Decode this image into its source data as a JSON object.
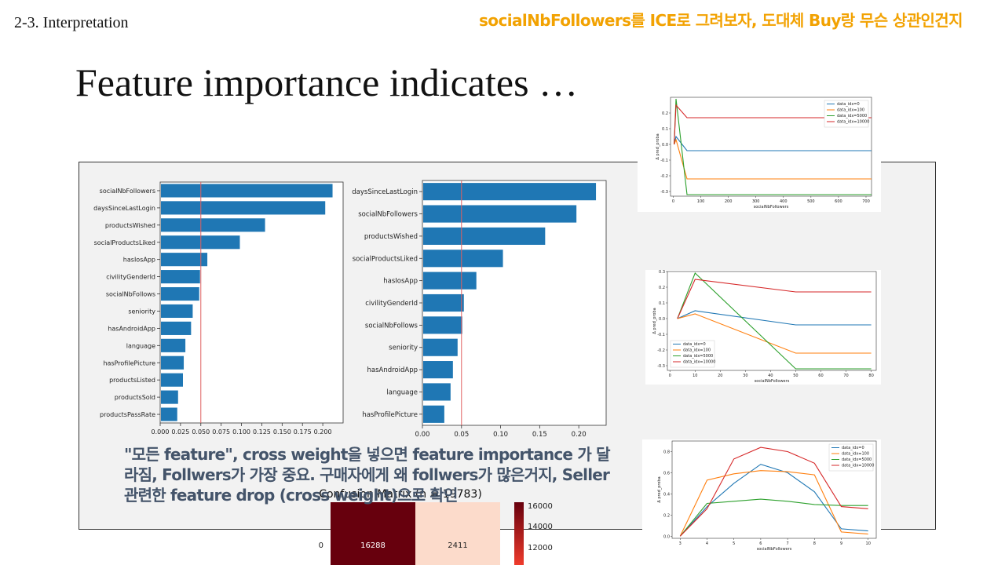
{
  "slide": {
    "section": "2-3. Interpretation",
    "title": "Feature importance indicates …",
    "note": "socialNbFollowers를 ICE로 그려보자, 도대체 Buy랑 무슨 상관인건지",
    "comment": "\"모든 feature\", cross weight을 넣으면 feature importance 가 달라짐, Follwers가 가장 중요. 구매자에게 왜 follwers가 많은거지,  Seller관련한 feature drop (cross weight)으로 확인"
  },
  "colors": {
    "bar": "#1f77b4",
    "threshold": "#e06060",
    "note": "#f2a202",
    "comment": "#44546a"
  },
  "chart_data": [
    {
      "type": "bar",
      "orientation": "horizontal",
      "categories": [
        "socialNbFollowers",
        "daysSinceLastLogin",
        "productsWished",
        "socialProductsLiked",
        "hasIosApp",
        "civilityGenderId",
        "socialNbFollows",
        "seniority",
        "hasAndroidApp",
        "language",
        "hasProfilePicture",
        "productsListed",
        "productsSold",
        "productsPassRate"
      ],
      "values": [
        0.212,
        0.203,
        0.129,
        0.098,
        0.058,
        0.049,
        0.048,
        0.04,
        0.038,
        0.031,
        0.029,
        0.028,
        0.022,
        0.021
      ],
      "threshold": 0.05,
      "xlim": [
        0,
        0.225
      ],
      "xticks": [
        "0.000",
        "0.025",
        "0.050",
        "0.075",
        "0.100",
        "0.125",
        "0.150",
        "0.175",
        "0.200"
      ]
    },
    {
      "type": "bar",
      "orientation": "horizontal",
      "categories": [
        "daysSinceLastLogin",
        "socialNbFollowers",
        "productsWished",
        "socialProductsLiked",
        "hasIosApp",
        "civilityGenderId",
        "socialNbFollows",
        "seniority",
        "hasAndroidApp",
        "language",
        "hasProfilePicture"
      ],
      "values": [
        0.222,
        0.197,
        0.157,
        0.103,
        0.069,
        0.053,
        0.051,
        0.045,
        0.039,
        0.036,
        0.028
      ],
      "threshold": 0.05,
      "xlim": [
        0,
        0.235
      ],
      "xticks": [
        "0.00",
        "0.05",
        "0.10",
        "0.15",
        "0.20"
      ]
    },
    {
      "type": "line",
      "xlabel": "socialNbFollowers",
      "ylabel": "Δ pred_proba",
      "xlim": [
        -10,
        720
      ],
      "ylim": [
        -0.33,
        0.3
      ],
      "xticks": [
        0,
        100,
        200,
        300,
        400,
        500,
        600,
        700
      ],
      "yticks": [
        "0.2",
        "0.1",
        "0.0",
        "-0.1",
        "-0.2",
        "-0.3"
      ],
      "legend": "top-right",
      "series": [
        {
          "name": "data_idx=0",
          "color": "#1f77b4",
          "x": [
            3,
            10,
            50,
            720
          ],
          "y": [
            0.0,
            0.05,
            -0.04,
            -0.04
          ]
        },
        {
          "name": "data_idx=100",
          "color": "#ff7f0e",
          "x": [
            3,
            10,
            50,
            720
          ],
          "y": [
            0.0,
            0.03,
            -0.22,
            -0.22
          ]
        },
        {
          "name": "data_idx=5000",
          "color": "#2ca02c",
          "x": [
            3,
            10,
            50,
            720
          ],
          "y": [
            0.0,
            0.29,
            -0.32,
            -0.32
          ]
        },
        {
          "name": "data_idx=10000",
          "color": "#d62728",
          "x": [
            3,
            10,
            50,
            720
          ],
          "y": [
            0.0,
            0.25,
            0.17,
            0.17
          ]
        }
      ]
    },
    {
      "type": "line",
      "xlabel": "socialNbFollowers",
      "ylabel": "Δ pred_proba",
      "xlim": [
        -1,
        82
      ],
      "ylim": [
        -0.33,
        0.3
      ],
      "xticks": [
        0,
        10,
        20,
        30,
        40,
        50,
        60,
        70,
        80
      ],
      "yticks": [
        "0.3",
        "0.2",
        "0.1",
        "0.0",
        "-0.1",
        "-0.2",
        "-0.3"
      ],
      "legend": "bottom-left",
      "series": [
        {
          "name": "data_idx=0",
          "color": "#1f77b4",
          "x": [
            3,
            10,
            50,
            80
          ],
          "y": [
            0.0,
            0.05,
            -0.04,
            -0.04
          ]
        },
        {
          "name": "data_idx=100",
          "color": "#ff7f0e",
          "x": [
            3,
            10,
            50,
            80
          ],
          "y": [
            0.0,
            0.03,
            -0.22,
            -0.22
          ]
        },
        {
          "name": "data_idx=5000",
          "color": "#2ca02c",
          "x": [
            3,
            10,
            50,
            80
          ],
          "y": [
            0.0,
            0.29,
            -0.32,
            -0.32
          ]
        },
        {
          "name": "data_idx=10000",
          "color": "#d62728",
          "x": [
            3,
            10,
            50,
            80
          ],
          "y": [
            0.0,
            0.25,
            0.17,
            0.17
          ]
        }
      ]
    },
    {
      "type": "line",
      "xlabel": "socialNbFollowers",
      "ylabel": "Δ pred_proba",
      "xlim": [
        2.7,
        10.3
      ],
      "ylim": [
        -0.02,
        0.9
      ],
      "xticks": [
        3,
        4,
        5,
        6,
        7,
        8,
        9,
        10
      ],
      "yticks": [
        "0.8",
        "0.6",
        "0.4",
        "0.2",
        "0.0"
      ],
      "legend": "top-right",
      "series": [
        {
          "name": "data_idx=0",
          "color": "#1f77b4",
          "x": [
            3,
            4,
            5,
            6,
            7,
            8,
            9,
            10
          ],
          "y": [
            0.0,
            0.28,
            0.5,
            0.68,
            0.6,
            0.42,
            0.07,
            0.05
          ]
        },
        {
          "name": "data_idx=100",
          "color": "#ff7f0e",
          "x": [
            3,
            4,
            5,
            6,
            7,
            8,
            9,
            10
          ],
          "y": [
            0.0,
            0.53,
            0.59,
            0.62,
            0.61,
            0.58,
            0.04,
            0.02
          ]
        },
        {
          "name": "data_idx=5000",
          "color": "#2ca02c",
          "x": [
            3,
            4,
            5,
            6,
            7,
            8,
            9,
            10
          ],
          "y": [
            0.0,
            0.31,
            0.33,
            0.35,
            0.33,
            0.3,
            0.29,
            0.29
          ]
        },
        {
          "name": "data_idx=10000",
          "color": "#d62728",
          "x": [
            3,
            4,
            5,
            6,
            7,
            8,
            9,
            10
          ],
          "y": [
            0.0,
            0.26,
            0.73,
            0.84,
            0.8,
            0.69,
            0.28,
            0.26
          ]
        }
      ]
    },
    {
      "type": "heatmap",
      "title": "Confusion Matrix (n = 19783)",
      "row_labels": [
        "0"
      ],
      "cells": [
        [
          16288,
          2411
        ]
      ],
      "cell_colors": [
        "#67000d",
        "#fcdbcb"
      ],
      "colorbar_ticks": [
        "16000",
        "14000",
        "12000"
      ]
    }
  ]
}
